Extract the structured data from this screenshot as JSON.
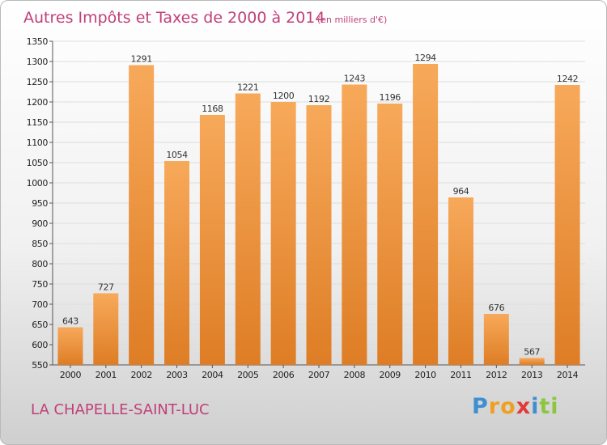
{
  "colors": {
    "bar_light": "#f7a95a",
    "bar_dark": "#de7d25",
    "title": "#c0407a",
    "grid": "#dddddd"
  },
  "chart_data": {
    "type": "bar",
    "title": "Autres Impôts et Taxes de 2000 à 2014",
    "unit": "(en milliers d'€)",
    "categories": [
      "2000",
      "2001",
      "2002",
      "2003",
      "2004",
      "2005",
      "2006",
      "2007",
      "2008",
      "2009",
      "2010",
      "2011",
      "2012",
      "2013",
      "2014"
    ],
    "values": [
      643,
      727,
      1291,
      1054,
      1168,
      1221,
      1200,
      1192,
      1243,
      1196,
      1294,
      964,
      676,
      567,
      1242
    ],
    "ylim": [
      550,
      1350
    ],
    "yticks": [
      550,
      600,
      650,
      700,
      750,
      800,
      850,
      900,
      950,
      1000,
      1050,
      1100,
      1150,
      1200,
      1250,
      1300,
      1350
    ],
    "grid": true
  },
  "footer": {
    "commune": "LA CHAPELLE-SAINT-LUC",
    "logo_letters": [
      {
        "ch": "P",
        "color": "#3d8fd1"
      },
      {
        "ch": "r",
        "color": "#f0a020"
      },
      {
        "ch": "o",
        "color": "#f0a020"
      },
      {
        "ch": "x",
        "color": "#e23a3a"
      },
      {
        "ch": "i",
        "color": "#3d8fd1"
      },
      {
        "ch": "t",
        "color": "#8cc63f"
      },
      {
        "ch": "i",
        "color": "#8cc63f"
      }
    ]
  }
}
